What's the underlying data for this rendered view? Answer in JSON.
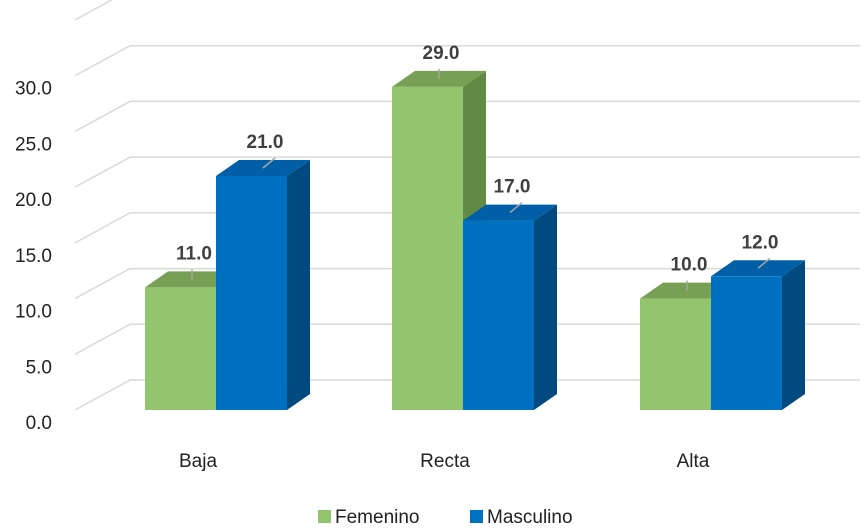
{
  "chart_data": {
    "type": "bar3d",
    "categories": [
      "Baja",
      "Recta",
      "Alta"
    ],
    "series": [
      {
        "name": "Femenino",
        "color": "#92c56e",
        "values": [
          11,
          29,
          10
        ],
        "value_labels": [
          "11.0",
          "29.0",
          "10.0"
        ]
      },
      {
        "name": "Masculino",
        "color": "#0070c0",
        "values": [
          21,
          17,
          12
        ],
        "value_labels": [
          "21.0",
          "17.0",
          "12.0"
        ]
      }
    ],
    "ylim": [
      0,
      35
    ],
    "yticks": [
      {
        "value": 0,
        "label": "0.0"
      },
      {
        "value": 5,
        "label": "5.0"
      },
      {
        "value": 10,
        "label": "10.0"
      },
      {
        "value": 15,
        "label": "15.0"
      },
      {
        "value": 20,
        "label": "20.0"
      },
      {
        "value": 25,
        "label": "25.0"
      },
      {
        "value": 30,
        "label": "30.0"
      }
    ],
    "grid": true,
    "legend": "bottom"
  }
}
